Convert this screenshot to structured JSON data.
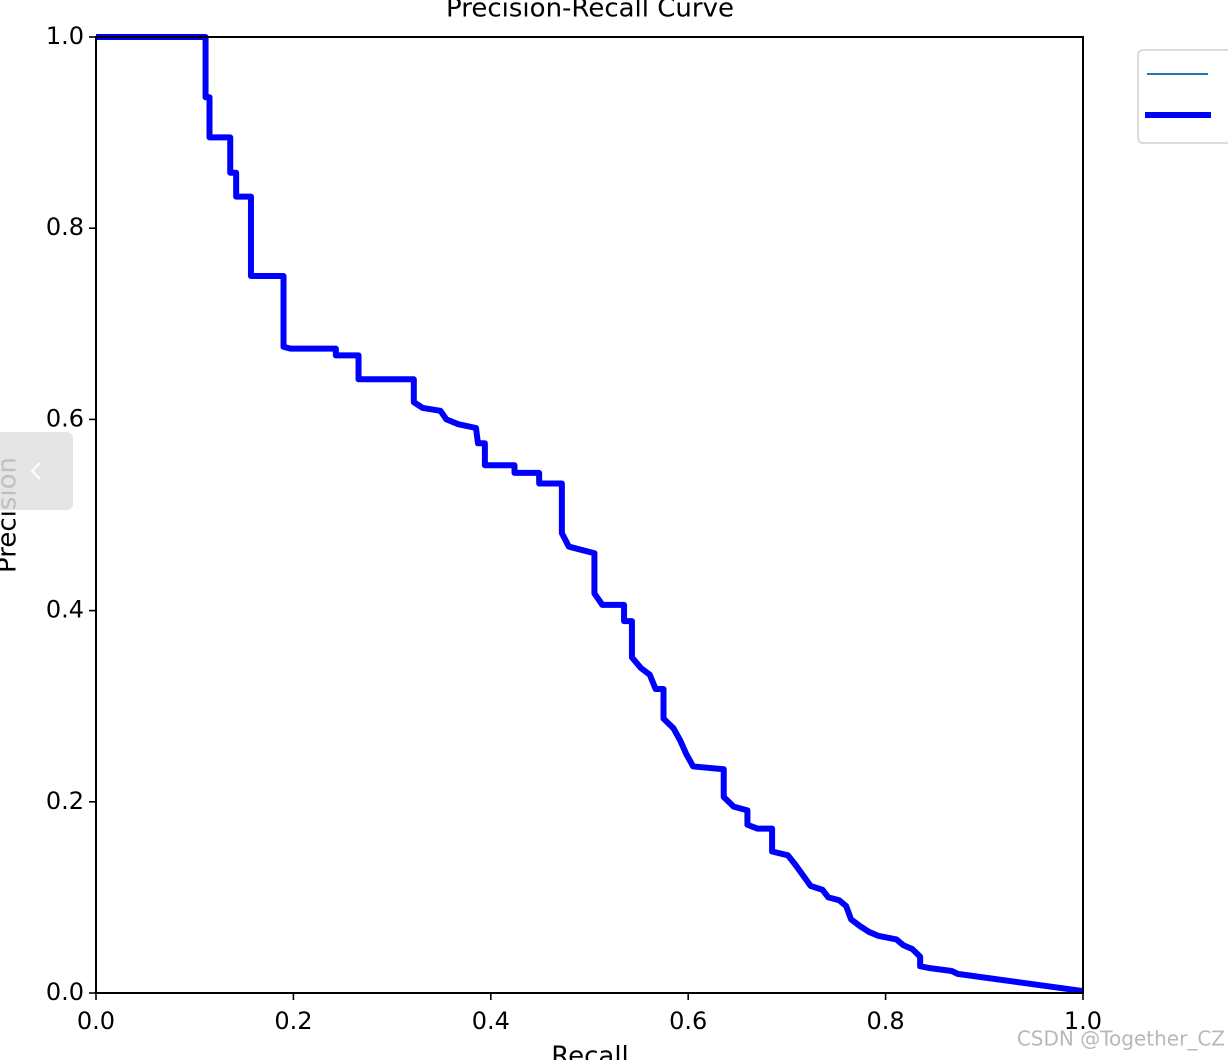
{
  "chart_data": {
    "type": "line",
    "title": "Precision-Recall Curve",
    "xlabel": "Recall",
    "ylabel": "Precision",
    "x": [
      0,
      0.111,
      0.111,
      0.115,
      0.115,
      0.136,
      0.136,
      0.142,
      0.142,
      0.157,
      0.157,
      0.19,
      0.19,
      0.197,
      0.243,
      0.243,
      0.266,
      0.266,
      0.322,
      0.322,
      0.331,
      0.349,
      0.355,
      0.367,
      0.385,
      0.387,
      0.394,
      0.394,
      0.424,
      0.424,
      0.449,
      0.449,
      0.472,
      0.472,
      0.479,
      0.49,
      0.505,
      0.505,
      0.513,
      0.535,
      0.535,
      0.543,
      0.543,
      0.552,
      0.561,
      0.567,
      0.575,
      0.575,
      0.585,
      0.592,
      0.598,
      0.605,
      0.636,
      0.636,
      0.646,
      0.66,
      0.66,
      0.67,
      0.685,
      0.685,
      0.701,
      0.708,
      0.715,
      0.724,
      0.736,
      0.742,
      0.753,
      0.76,
      0.765,
      0.774,
      0.783,
      0.792,
      0.811,
      0.818,
      0.827,
      0.835,
      0.835,
      0.845,
      0.867,
      0.873,
      1.0
    ],
    "series": [
      {
        "color": "#0000ff",
        "values": [
          1.0,
          1.0,
          0.937,
          0.937,
          0.895,
          0.895,
          0.858,
          0.858,
          0.833,
          0.833,
          0.75,
          0.75,
          0.676,
          0.674,
          0.674,
          0.667,
          0.667,
          0.642,
          0.642,
          0.618,
          0.612,
          0.609,
          0.6,
          0.595,
          0.591,
          0.575,
          0.575,
          0.552,
          0.552,
          0.544,
          0.544,
          0.533,
          0.533,
          0.481,
          0.467,
          0.464,
          0.46,
          0.418,
          0.406,
          0.406,
          0.389,
          0.389,
          0.351,
          0.34,
          0.333,
          0.318,
          0.318,
          0.287,
          0.277,
          0.264,
          0.25,
          0.237,
          0.234,
          0.205,
          0.195,
          0.191,
          0.176,
          0.172,
          0.172,
          0.148,
          0.144,
          0.135,
          0.125,
          0.112,
          0.108,
          0.1,
          0.097,
          0.091,
          0.077,
          0.07,
          0.064,
          0.06,
          0.056,
          0.05,
          0.046,
          0.038,
          0.028,
          0.026,
          0.023,
          0.02,
          0.002
        ]
      }
    ],
    "xlim": [
      0,
      1
    ],
    "ylim": [
      0,
      1
    ],
    "xticks": [
      {
        "value": 0,
        "label": "0.0"
      },
      0.2,
      0.4,
      0.6,
      0.8,
      {
        "value": 1,
        "label": "1.0"
      }
    ],
    "yticks": [
      {
        "value": 0,
        "label": "0.0"
      },
      0.2,
      0.4,
      0.6,
      0.8,
      {
        "value": 1,
        "label": "1.0"
      }
    ],
    "grid": false
  },
  "watermark": "CSDN @Together_CZ"
}
